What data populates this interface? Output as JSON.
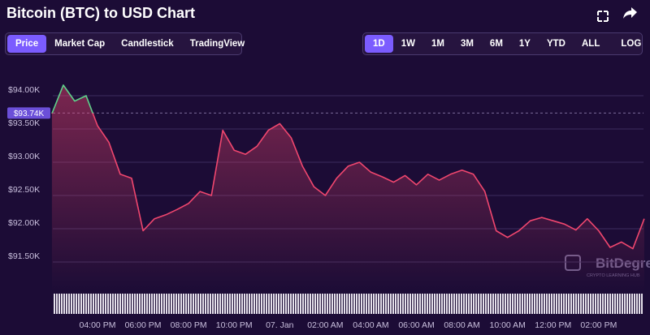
{
  "header": {
    "title": "Bitcoin (BTC) to USD Chart"
  },
  "tabs": [
    "Price",
    "Market Cap",
    "Candlestick",
    "TradingView"
  ],
  "active_tab": "Price",
  "ranges": [
    "1D",
    "1W",
    "1M",
    "3M",
    "6M",
    "1Y",
    "YTD",
    "ALL"
  ],
  "active_range": "1D",
  "scale_button": "LOG",
  "watermark": {
    "name": "BitDegree",
    "tagline": "CRYPTO LEARNING HUB"
  },
  "chart_data": {
    "type": "line",
    "categories": [
      null,
      null,
      null,
      null,
      "04:00 PM",
      null,
      null,
      null,
      "06:00 PM",
      null,
      null,
      null,
      "08:00 PM",
      null,
      null,
      null,
      "10:00 PM",
      null,
      null,
      null,
      "07. Jan",
      null,
      null,
      null,
      "02:00 AM",
      null,
      null,
      null,
      "04:00 AM",
      null,
      null,
      null,
      "06:00 AM",
      null,
      null,
      null,
      "08:00 AM",
      null,
      null,
      null,
      "10:00 AM",
      null,
      null,
      null,
      "12:00 PM",
      null,
      null,
      null,
      "02:00 PM",
      null,
      null,
      null,
      null
    ],
    "values": [
      93730,
      94160,
      93920,
      94000,
      93550,
      93300,
      92820,
      92760,
      91970,
      92150,
      92210,
      92290,
      92380,
      92560,
      92500,
      93480,
      93180,
      93120,
      93240,
      93480,
      93580,
      93370,
      92940,
      92630,
      92500,
      92760,
      92940,
      93000,
      92850,
      92780,
      92700,
      92800,
      92660,
      92820,
      92730,
      92820,
      92880,
      92820,
      92560,
      91970,
      91870,
      91970,
      92120,
      92170,
      92120,
      92070,
      91980,
      92150,
      91970,
      91720,
      91800,
      91700,
      92150
    ],
    "color": "#f0466e",
    "color_above_reference": "#5fd08a",
    "reference": {
      "value": 93740,
      "label": "$93.74K"
    },
    "ylim": [
      91050,
      94400
    ],
    "yticks": [
      {
        "value": 91500,
        "label": "$91.50K"
      },
      {
        "value": 92000,
        "label": "$92.00K"
      },
      {
        "value": 92500,
        "label": "$92.50K"
      },
      {
        "value": 93000,
        "label": "$93.00K"
      },
      {
        "value": 93500,
        "label": "$93.50K"
      },
      {
        "value": 94000,
        "label": "$94.00K"
      }
    ],
    "grid": true
  }
}
